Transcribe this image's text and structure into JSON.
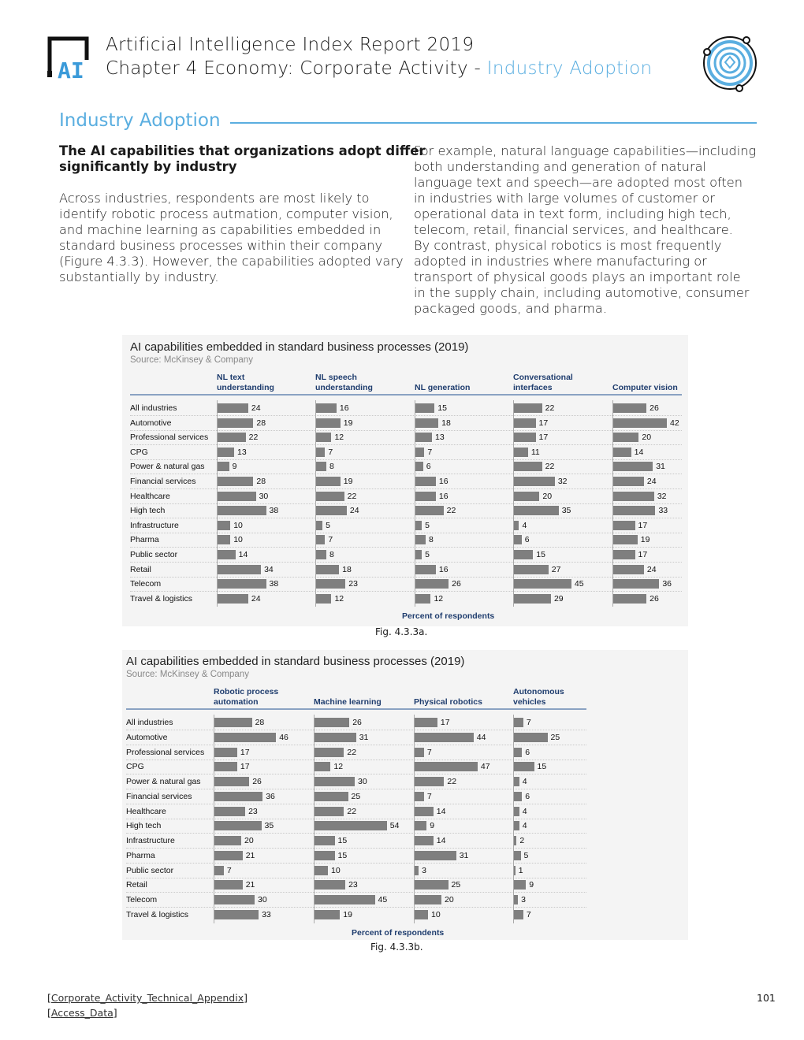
{
  "header": {
    "report_title": "Artificial Intelligence Index Report 2019",
    "chapter": "Chapter 4 Economy: Corporate Activity - ",
    "chapter_section": "Industry Adoption",
    "logo_text": "AI",
    "accent_color": "#5aaee0"
  },
  "section": {
    "title": "Industry Adoption",
    "left": {
      "subtitle_lines": [
        "The AI capabilities that organizations adopt differ",
        "significantly by industry"
      ],
      "body_lines": [
        "Across industries, respondents are most likely to",
        "identify robotic process autmation, computer vision,",
        "and machine learning as capabilities embedded in",
        "standard business processes within their company",
        "(Figure 4.3.3). However, the capabilities adopted vary",
        "substantially by industry."
      ]
    },
    "right": {
      "body_lines": [
        "For example, natural language capabilities—including",
        "both understanding and generation of natural",
        "language text and speech—are adopted most often",
        "in industries with large volumes of customer or",
        "operational data in text form, including high tech,",
        "telecom, retail, financial services, and healthcare.",
        "By contrast, physical robotics is most frequently",
        "adopted in industries where manufacturing or",
        "transport of physical goods plays an important role",
        "in the supply chain, including automotive, consumer",
        "packaged goods, and pharma."
      ]
    }
  },
  "chart_data": [
    {
      "type": "bar",
      "orientation": "horizontal",
      "layout": "small-multiples",
      "title": "AI capabilities embedded in standard business processes (2019)",
      "subtitle": "Source: McKinsey & Company",
      "xlabel": "Percent of respondents",
      "caption": "Fig. 4.3.3a.",
      "categories": [
        "All industries",
        "Automotive",
        "Professional services",
        "CPG",
        "Power & natural gas",
        "Financial services",
        "Healthcare",
        "High tech",
        "Infrastructure",
        "Pharma",
        "Public sector",
        "Retail",
        "Telecom",
        "Travel & logistics"
      ],
      "series": [
        {
          "name": "NL text understanding",
          "values": [
            24,
            28,
            22,
            13,
            9,
            28,
            30,
            38,
            10,
            10,
            14,
            34,
            38,
            24
          ]
        },
        {
          "name": "NL speech understanding",
          "values": [
            16,
            19,
            12,
            7,
            8,
            19,
            22,
            24,
            5,
            7,
            8,
            18,
            23,
            12
          ]
        },
        {
          "name": "NL generation",
          "values": [
            15,
            18,
            13,
            7,
            6,
            16,
            16,
            22,
            5,
            8,
            5,
            16,
            26,
            12
          ]
        },
        {
          "name": "Conversational interfaces",
          "values": [
            22,
            17,
            17,
            11,
            22,
            32,
            20,
            35,
            4,
            6,
            15,
            27,
            45,
            29
          ]
        },
        {
          "name": "Computer vision",
          "values": [
            26,
            42,
            20,
            14,
            31,
            24,
            32,
            33,
            17,
            19,
            17,
            24,
            36,
            26
          ]
        }
      ],
      "header_lines": [
        [
          "NL text",
          "understanding"
        ],
        [
          "NL speech",
          "understanding"
        ],
        [
          "",
          "NL generation"
        ],
        [
          "Conversational",
          "interfaces"
        ],
        [
          "",
          "Computer vision"
        ]
      ],
      "bar_color": "#7f7f7f",
      "header_color": "#1f3d6e"
    },
    {
      "type": "bar",
      "orientation": "horizontal",
      "layout": "small-multiples",
      "title": "AI capabilities embedded in standard business processes (2019)",
      "subtitle": "Source: McKinsey & Company",
      "xlabel": "Percent of respondents",
      "caption": "Fig. 4.3.3b.",
      "categories": [
        "All industries",
        "Automotive",
        "Professional services",
        "CPG",
        "Power & natural gas",
        "Financial services",
        "Healthcare",
        "High tech",
        "Infrastructure",
        "Pharma",
        "Public sector",
        "Retail",
        "Telecom",
        "Travel & logistics"
      ],
      "series": [
        {
          "name": "Robotic process automation",
          "values": [
            28,
            46,
            17,
            17,
            26,
            36,
            23,
            35,
            20,
            21,
            7,
            21,
            30,
            33
          ]
        },
        {
          "name": "Machine learning",
          "values": [
            26,
            31,
            22,
            12,
            30,
            25,
            22,
            54,
            15,
            15,
            10,
            23,
            45,
            19
          ]
        },
        {
          "name": "Physical robotics",
          "values": [
            17,
            44,
            7,
            47,
            22,
            7,
            14,
            9,
            14,
            31,
            3,
            25,
            20,
            10
          ]
        },
        {
          "name": "Autonomous vehicles",
          "values": [
            7,
            25,
            6,
            15,
            4,
            6,
            4,
            4,
            2,
            5,
            1,
            9,
            3,
            7
          ]
        }
      ],
      "header_lines": [
        [
          "Robotic process",
          "automation"
        ],
        [
          "",
          "Machine learning"
        ],
        [
          "",
          "Physical robotics"
        ],
        [
          "Autonomous",
          "vehicles"
        ]
      ],
      "bar_color": "#7f7f7f",
      "header_color": "#1f3d6e"
    }
  ],
  "footer": {
    "link1": "Corporate_Activity_Technical_Appendix",
    "link2": "Access_Data",
    "page_number": "101"
  }
}
